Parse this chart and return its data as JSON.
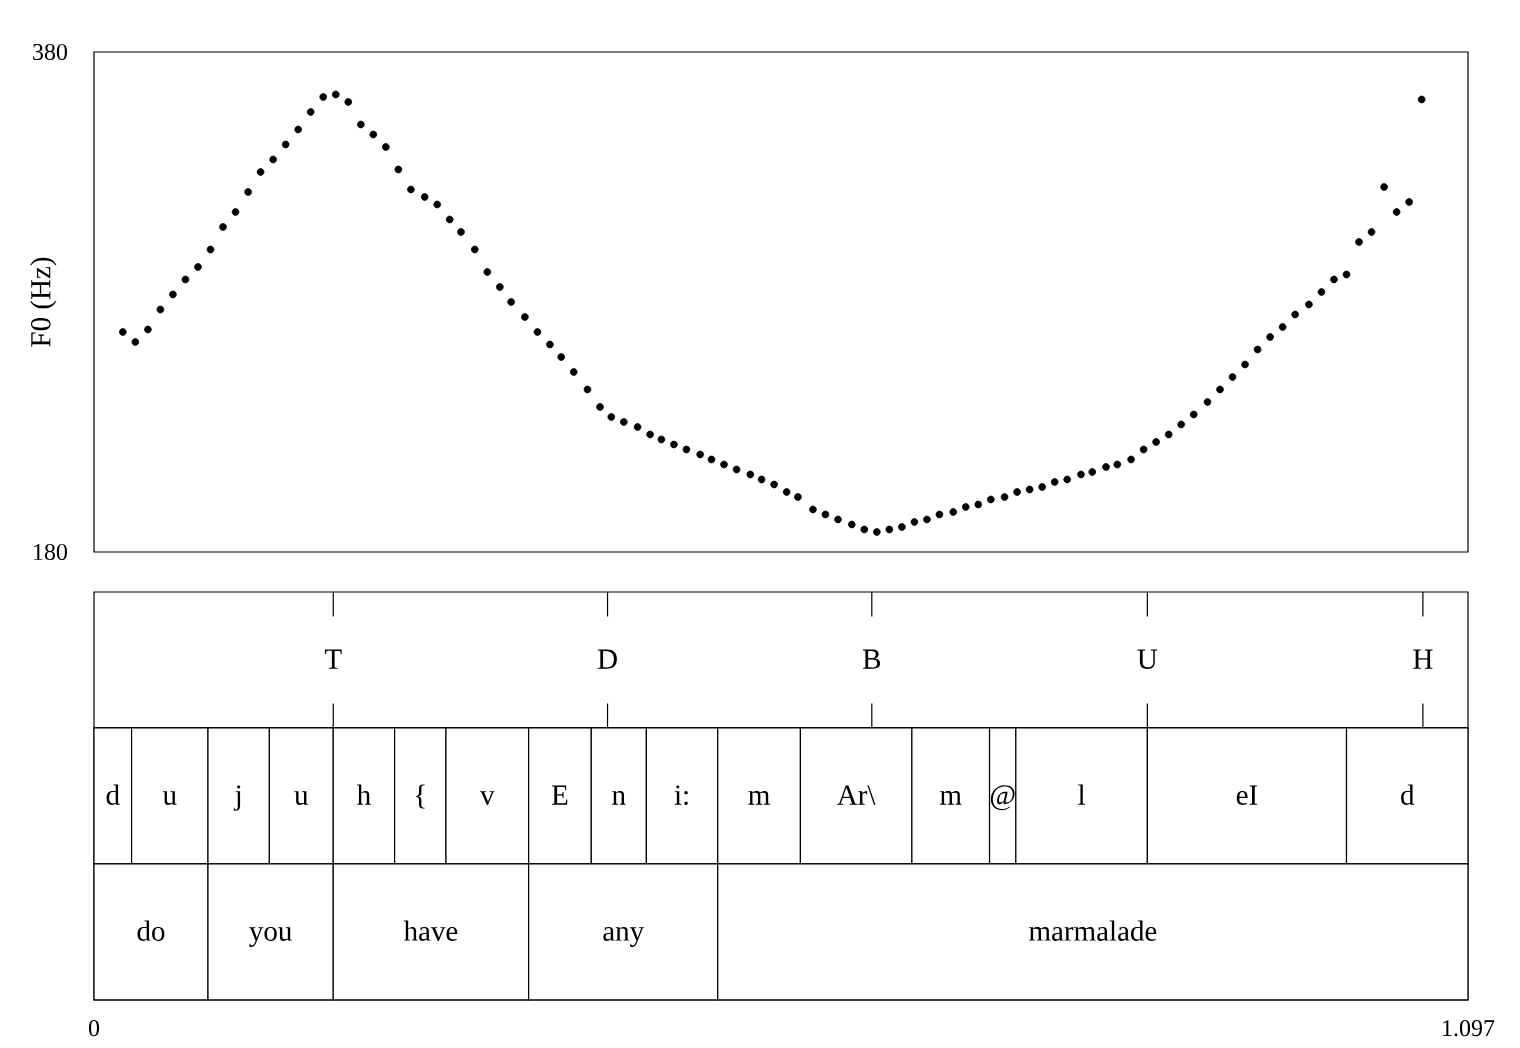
{
  "chart_data": [
    {
      "type": "scatter",
      "ylabel": "F0 (Hz)",
      "color": "#000000",
      "xlim": [
        0,
        1.097
      ],
      "ylim": [
        180,
        380
      ],
      "yticks": [
        180,
        380
      ],
      "tick_labels": "y",
      "ref_lines": [
        {
          "axis": "x",
          "value": 0.191,
          "label": "T"
        },
        {
          "axis": "x",
          "value": 0.41,
          "label": "D"
        },
        {
          "axis": "x",
          "value": 0.621,
          "label": "B"
        },
        {
          "axis": "x",
          "value": 0.841,
          "label": "U"
        },
        {
          "axis": "x",
          "value": 1.061,
          "label": "H"
        }
      ],
      "x": [
        0.023,
        0.033,
        0.043,
        0.053,
        0.063,
        0.073,
        0.083,
        0.093,
        0.103,
        0.113,
        0.123,
        0.133,
        0.143,
        0.153,
        0.163,
        0.173,
        0.183,
        0.193,
        0.203,
        0.213,
        0.223,
        0.233,
        0.243,
        0.253,
        0.264,
        0.274,
        0.284,
        0.293,
        0.304,
        0.314,
        0.324,
        0.333,
        0.344,
        0.354,
        0.364,
        0.373,
        0.383,
        0.394,
        0.404,
        0.413,
        0.423,
        0.434,
        0.444,
        0.453,
        0.463,
        0.473,
        0.484,
        0.493,
        0.503,
        0.513,
        0.524,
        0.533,
        0.543,
        0.553,
        0.562,
        0.574,
        0.584,
        0.594,
        0.605,
        0.615,
        0.625,
        0.635,
        0.645,
        0.655,
        0.665,
        0.675,
        0.686,
        0.696,
        0.706,
        0.716,
        0.727,
        0.737,
        0.747,
        0.757,
        0.767,
        0.777,
        0.788,
        0.797,
        0.808,
        0.817,
        0.828,
        0.838,
        0.848,
        0.858,
        0.868,
        0.878,
        0.889,
        0.899,
        0.909,
        0.919,
        0.929,
        0.939,
        0.949,
        0.959,
        0.97,
        0.98,
        0.99,
        1.0,
        1.01,
        1.02,
        1.03,
        1.04,
        1.05,
        1.06
      ],
      "values": [
        268,
        264,
        269,
        277,
        283,
        289,
        294,
        301,
        310,
        316,
        324,
        332,
        337,
        343,
        349,
        356,
        362,
        363,
        360,
        351,
        347,
        342,
        333,
        325,
        322,
        319,
        313,
        308,
        301,
        292,
        286,
        280,
        274,
        268,
        263,
        258,
        252,
        245,
        238,
        234,
        232,
        230,
        227,
        225,
        223,
        221,
        219,
        217,
        215,
        213,
        211,
        209,
        207,
        204,
        202,
        197,
        195,
        193,
        191,
        189,
        188,
        189,
        190,
        192,
        193,
        195,
        196,
        198,
        199,
        201,
        202,
        204,
        205,
        206,
        208,
        209,
        211,
        212,
        214,
        215,
        217,
        221,
        224,
        227,
        231,
        235,
        240,
        245,
        250,
        255,
        261,
        266,
        270,
        275,
        279,
        284,
        289,
        291,
        304,
        308,
        326,
        316,
        320,
        361
      ]
    },
    {
      "type": "bar",
      "orientation": "horizontal",
      "stacked": true,
      "categories": [
        null,
        null
      ],
      "xlim": [
        0,
        1.097
      ],
      "xticks": [
        0,
        1.097
      ],
      "tick_labels": "x",
      "series": [
        {
          "name": "d",
          "color": "#ffffff",
          "values": [
            0.03,
            null
          ]
        },
        {
          "name": "u",
          "color": "#ffffff",
          "values": [
            0.061,
            null
          ]
        },
        {
          "name": "j",
          "color": "#ffffff",
          "values": [
            0.049,
            null
          ]
        },
        {
          "name": "u",
          "color": "#ffffff",
          "values": [
            0.051,
            null
          ]
        },
        {
          "name": "h",
          "color": "#ffffff",
          "values": [
            0.049,
            null
          ]
        },
        {
          "name": "{",
          "color": "#ffffff",
          "values": [
            0.041,
            null
          ]
        },
        {
          "name": "v",
          "color": "#ffffff",
          "values": [
            0.066,
            null
          ]
        },
        {
          "name": "E",
          "color": "#ffffff",
          "values": [
            0.05,
            null
          ]
        },
        {
          "name": "n",
          "color": "#ffffff",
          "values": [
            0.044,
            null
          ]
        },
        {
          "name": "i:",
          "color": "#ffffff",
          "values": [
            0.057,
            null
          ]
        },
        {
          "name": "m",
          "color": "#ffffff",
          "values": [
            0.066,
            null
          ]
        },
        {
          "name": "Ar\\",
          "color": "#ffffff",
          "values": [
            0.089,
            null
          ]
        },
        {
          "name": "m",
          "color": "#ffffff",
          "values": [
            0.062,
            null
          ]
        },
        {
          "name": "@",
          "color": "#ffffff",
          "values": [
            0.021,
            null
          ]
        },
        {
          "name": "l",
          "color": "#ffffff",
          "values": [
            0.105,
            null
          ]
        },
        {
          "name": "eI",
          "color": "#ffffff",
          "values": [
            0.159,
            null
          ]
        },
        {
          "name": "d",
          "color": "#ffffff",
          "values": [
            0.097,
            null
          ]
        },
        {
          "name": "do",
          "color": "#ffffff",
          "values": [
            null,
            0.091
          ]
        },
        {
          "name": "you",
          "color": "#ffffff",
          "values": [
            null,
            0.1
          ]
        },
        {
          "name": "have",
          "color": "#ffffff",
          "values": [
            null,
            0.156
          ]
        },
        {
          "name": "any",
          "color": "#ffffff",
          "values": [
            null,
            0.151
          ]
        },
        {
          "name": "marmalade",
          "color": "#ffffff",
          "values": [
            null,
            0.599
          ]
        }
      ]
    }
  ]
}
